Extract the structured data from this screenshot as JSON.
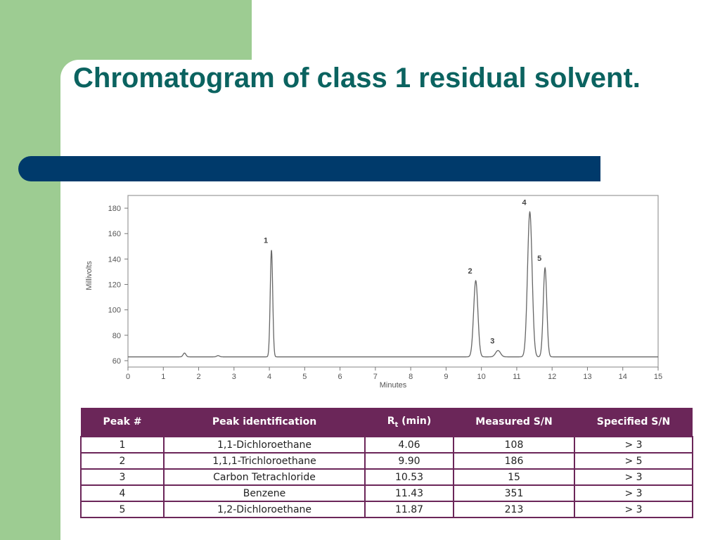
{
  "slide": {
    "title": "Chromatogram of class 1 residual solvent.",
    "colors": {
      "left_panel": "#9dcc92",
      "title": "#0b6360",
      "accent_bar": "#003a6b",
      "table_header": "#6b2659"
    }
  },
  "chart_data": {
    "type": "line",
    "xlabel": "Minutes",
    "ylabel": "Millivolts",
    "xlim": [
      0,
      15
    ],
    "ylim": [
      55,
      190
    ],
    "xticks": [
      0,
      1,
      2,
      3,
      4,
      5,
      6,
      7,
      8,
      9,
      10,
      11,
      12,
      13,
      14,
      15
    ],
    "yticks": [
      60,
      80,
      100,
      120,
      140,
      160,
      180
    ],
    "baseline": 63,
    "grid": false,
    "peaks": [
      {
        "label": "1",
        "x": 4.06,
        "y": 147
      },
      {
        "label": "2",
        "x": 9.84,
        "y": 123
      },
      {
        "label": "3",
        "x": 10.47,
        "y": 68
      },
      {
        "label": "4",
        "x": 11.37,
        "y": 177
      },
      {
        "label": "5",
        "x": 11.8,
        "y": 133
      }
    ],
    "minor_peaks": [
      {
        "x": 1.6,
        "y": 66
      },
      {
        "x": 2.55,
        "y": 64
      }
    ]
  },
  "table": {
    "headers": {
      "peak": "Peak #",
      "identification": "Peak identification",
      "rt_main": "R",
      "rt_sub": "t",
      "rt_unit": " (min)",
      "measured": "Measured S/N",
      "specified": "Specified S/N"
    },
    "rows": [
      [
        "1",
        "1,1-Dichloroethane",
        "4.06",
        "108",
        "> 3"
      ],
      [
        "2",
        "1,1,1-Trichloroethane",
        "9.90",
        "186",
        "> 5"
      ],
      [
        "3",
        "Carbon Tetrachloride",
        "10.53",
        "15",
        "> 3"
      ],
      [
        "4",
        "Benzene",
        "11.43",
        "351",
        "> 3"
      ],
      [
        "5",
        "1,2-Dichloroethane",
        "11.87",
        "213",
        "> 3"
      ]
    ]
  }
}
